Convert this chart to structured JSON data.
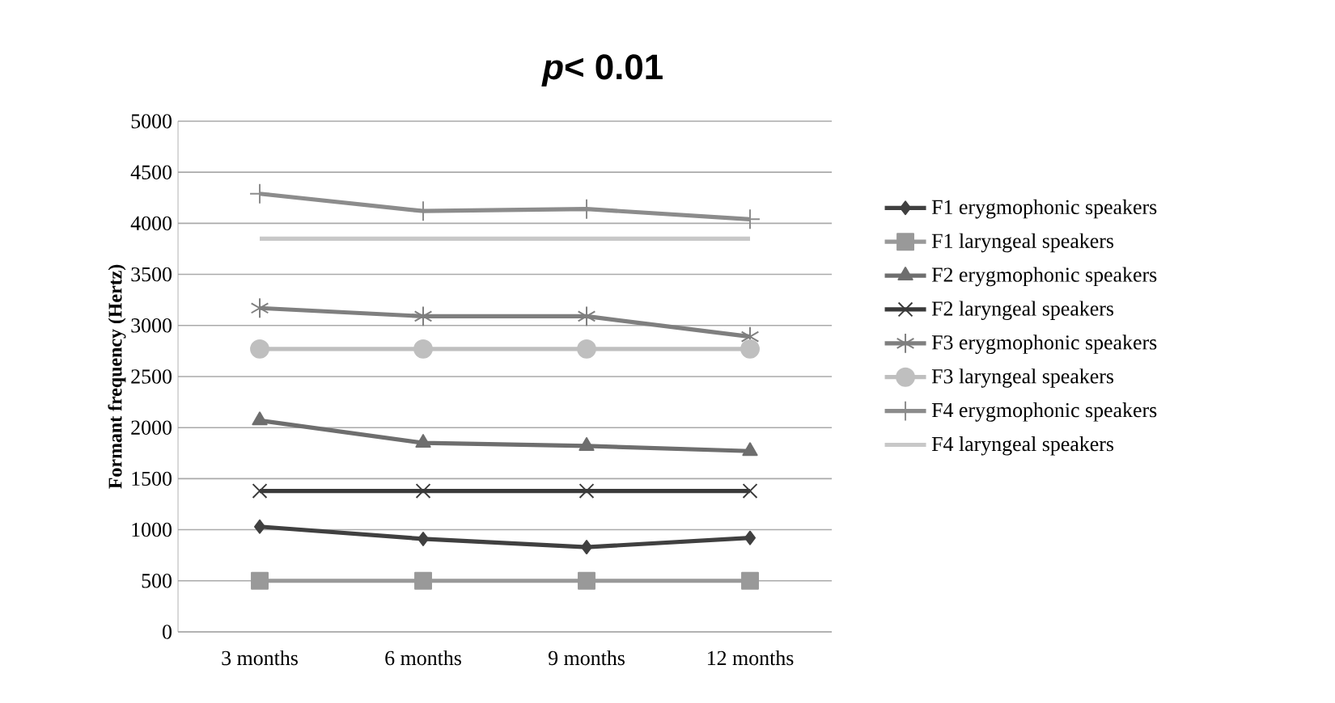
{
  "chart_data": {
    "type": "line",
    "title": "*p*< 0.01",
    "ylabel": "Formant frequency (Hertz)",
    "categories": [
      "3 months",
      "6 months",
      "9 months",
      "12 months"
    ],
    "series": [
      {
        "name": "F1 erygmophonic speakers",
        "color": "#404040",
        "marker": "diamond",
        "values": [
          1030,
          910,
          830,
          920
        ]
      },
      {
        "name": "F1 laryngeal speakers",
        "color": "#999999",
        "marker": "square",
        "values": [
          500,
          500,
          500,
          500
        ]
      },
      {
        "name": "F2 erygmophonic speakers",
        "color": "#6e6e6e",
        "marker": "triangle",
        "values": [
          2070,
          1850,
          1820,
          1770
        ]
      },
      {
        "name": "F2 laryngeal speakers",
        "color": "#3a3a3a",
        "marker": "cross",
        "values": [
          1380,
          1380,
          1380,
          1380
        ]
      },
      {
        "name": "F3 erygmophonic speakers",
        "color": "#7f7f7f",
        "marker": "cross",
        "values": [
          3170,
          3090,
          3090,
          2890
        ]
      },
      {
        "name": "F3 laryngeal speakers",
        "color": "#bfbfbf",
        "marker": "circle",
        "values": [
          2770,
          2770,
          2770,
          2770
        ]
      },
      {
        "name": "F4 erygmophonic speakers",
        "color": "#8c8c8c",
        "marker": "cross",
        "values": [
          4290,
          4120,
          4140,
          4040
        ]
      },
      {
        "name": "F4 laryngeal speakers",
        "color": "#c8c8c8",
        "marker": "none",
        "values": [
          3850,
          3850,
          3850,
          3850
        ]
      }
    ],
    "ylim": [
      0,
      5000
    ],
    "yticks": [
      0,
      500,
      1000,
      1500,
      2000,
      2500,
      3000,
      3500,
      4000,
      4500,
      5000
    ],
    "grid": "y",
    "legend": "right"
  }
}
